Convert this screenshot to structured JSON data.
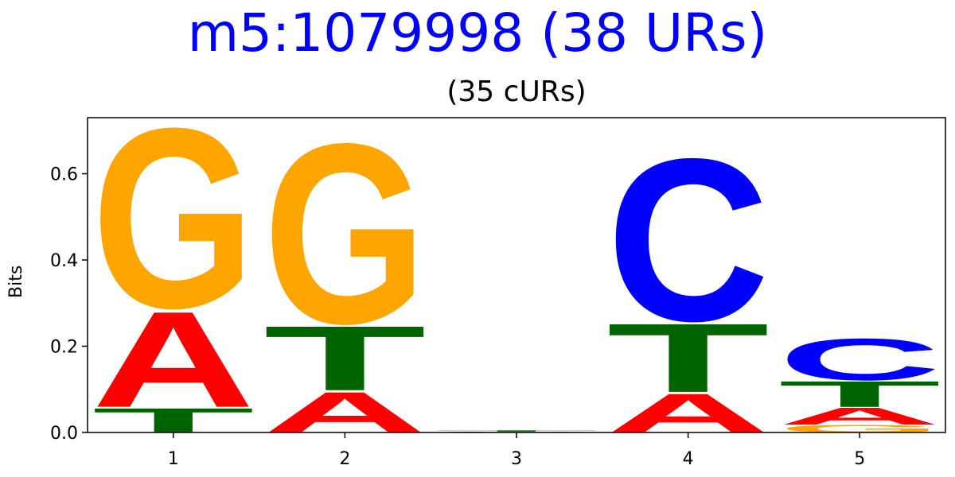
{
  "chart_data": {
    "type": "sequence-logo",
    "title": "m5:1079998 (38 URs)",
    "subtitle": "(35 cURs)",
    "ylabel": "Bits",
    "ylim": [
      0,
      0.73
    ],
    "yticks": [
      "0.0",
      "0.2",
      "0.4",
      "0.6"
    ],
    "ytick_values": [
      0,
      0.2,
      0.4,
      0.6
    ],
    "positions": [
      "1",
      "2",
      "3",
      "4",
      "5"
    ],
    "colors": {
      "A": "#ff0000",
      "C": "#0000ff",
      "G": "#ffa500",
      "T": "#006400"
    },
    "stacks": [
      [
        {
          "letter": "T",
          "height": 0.058
        },
        {
          "letter": "A",
          "height": 0.23
        },
        {
          "letter": "G",
          "height": 0.432
        }
      ],
      [
        {
          "letter": "A",
          "height": 0.097
        },
        {
          "letter": "T",
          "height": 0.155
        },
        {
          "letter": "G",
          "height": 0.432
        }
      ],
      [
        {
          "letter": "C",
          "height": 0.002
        },
        {
          "letter": "T",
          "height": 0.003
        }
      ],
      [
        {
          "letter": "A",
          "height": 0.093
        },
        {
          "letter": "T",
          "height": 0.165
        },
        {
          "letter": "C",
          "height": 0.39
        }
      ],
      [
        {
          "letter": "G",
          "height": 0.018
        },
        {
          "letter": "A",
          "height": 0.041
        },
        {
          "letter": "T",
          "height": 0.062
        },
        {
          "letter": "C",
          "height": 0.1
        }
      ]
    ]
  }
}
